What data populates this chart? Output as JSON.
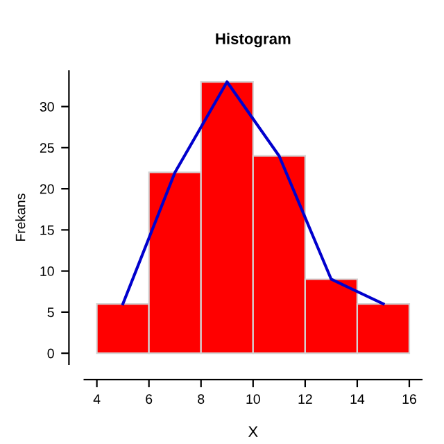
{
  "chart_data": {
    "type": "histogram",
    "title": "Histogram",
    "xlabel": "X",
    "ylabel": "Frekans",
    "bins": [
      4,
      6,
      8,
      10,
      12,
      14,
      16
    ],
    "values": [
      6,
      22,
      33,
      24,
      9,
      6
    ],
    "color": "#ff0000",
    "series": [
      {
        "type": "line",
        "color": "#0000cd",
        "x": [
          5,
          7,
          9,
          11,
          13,
          15
        ],
        "values": [
          6,
          22,
          33,
          24,
          9,
          6
        ]
      }
    ],
    "xlim": [
      3.52,
      16.48
    ],
    "ylim": [
      -1.32,
      34.32
    ],
    "xticks": [
      4,
      6,
      8,
      10,
      12,
      14,
      16
    ],
    "yticks": [
      0,
      5,
      10,
      15,
      20,
      25,
      30
    ],
    "grid": false
  }
}
